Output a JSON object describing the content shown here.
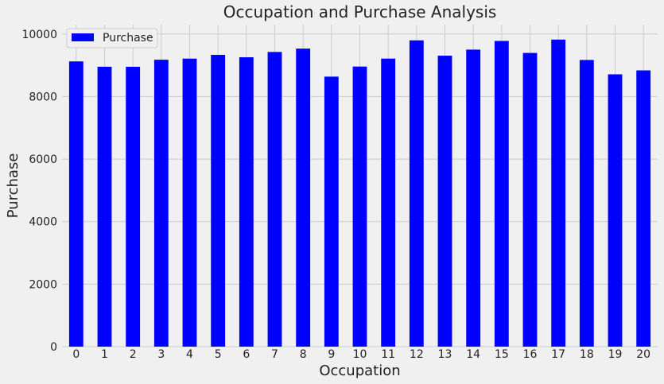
{
  "chart_data": {
    "type": "bar",
    "title": "Occupation and Purchase Analysis",
    "xlabel": "Occupation",
    "ylabel": "Purchase",
    "categories": [
      "0",
      "1",
      "2",
      "3",
      "4",
      "5",
      "6",
      "7",
      "8",
      "9",
      "10",
      "11",
      "12",
      "13",
      "14",
      "15",
      "16",
      "17",
      "18",
      "19",
      "20"
    ],
    "series": [
      {
        "name": "Purchase",
        "color": "#0000ff",
        "values": [
          9124,
          8953,
          8952,
          9178,
          9213,
          9333,
          9256,
          9426,
          9533,
          8637,
          8959,
          9214,
          9797,
          9307,
          9501,
          9779,
          9395,
          9822,
          9170,
          8711,
          8837
        ]
      }
    ],
    "ylim": [
      0,
      10300
    ],
    "yticks": [
      0,
      2000,
      4000,
      6000,
      8000,
      10000
    ],
    "grid": true,
    "legend_position": "top-left",
    "background_color": "#f0f0f0",
    "grid_color": "#cbcbcb"
  }
}
